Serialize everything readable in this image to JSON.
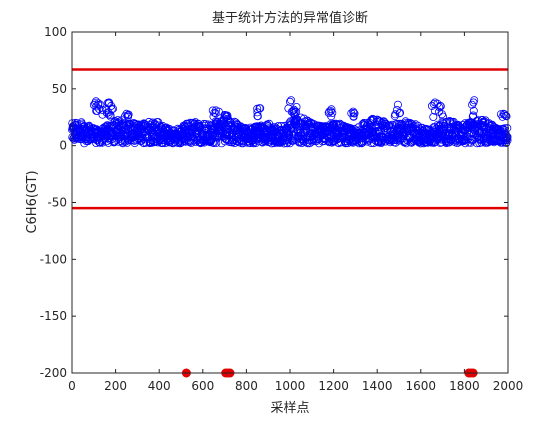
{
  "chart_data": {
    "type": "scatter",
    "title": "基于统计方法的异常值诊断",
    "xlabel": "采样点",
    "ylabel": "C6H6(GT)",
    "xlim": [
      0,
      2000
    ],
    "ylim": [
      -200,
      100
    ],
    "xticks": [
      0,
      200,
      400,
      600,
      800,
      1000,
      1200,
      1400,
      1600,
      1800,
      2000
    ],
    "yticks": [
      -200,
      -150,
      -100,
      -50,
      0,
      50,
      100
    ],
    "grid": false,
    "legend": "none",
    "colors": {
      "points": "#0000ff",
      "thresholds": "#e00000",
      "outliers": "#e00000",
      "axes": "#262626"
    },
    "thresholds": {
      "upper": 67,
      "lower": -55
    },
    "series": [
      {
        "marker": "circle-open",
        "approx_profile": {
          "x_start": 1,
          "x_end": 2000,
          "typical_range": [
            2,
            25
          ],
          "peaks": [
            {
              "x": 110,
              "y": 39
            },
            {
              "x": 130,
              "y": 36
            },
            {
              "x": 170,
              "y": 38
            },
            {
              "x": 180,
              "y": 35
            },
            {
              "x": 250,
              "y": 28
            },
            {
              "x": 660,
              "y": 31
            },
            {
              "x": 700,
              "y": 27
            },
            {
              "x": 860,
              "y": 33
            },
            {
              "x": 1005,
              "y": 40
            },
            {
              "x": 1030,
              "y": 34
            },
            {
              "x": 1190,
              "y": 32
            },
            {
              "x": 1290,
              "y": 30
            },
            {
              "x": 1495,
              "y": 36
            },
            {
              "x": 1665,
              "y": 38
            },
            {
              "x": 1690,
              "y": 35
            },
            {
              "x": 1845,
              "y": 40
            },
            {
              "x": 1980,
              "y": 28
            }
          ]
        }
      },
      {
        "marker": "filled-dot",
        "points": [
          {
            "x": 525,
            "y": -200
          },
          {
            "x": 705,
            "y": -200
          },
          {
            "x": 715,
            "y": -200
          },
          {
            "x": 725,
            "y": -200
          },
          {
            "x": 1820,
            "y": -200
          },
          {
            "x": 1830,
            "y": -200
          },
          {
            "x": 1840,
            "y": -200
          }
        ]
      }
    ]
  }
}
